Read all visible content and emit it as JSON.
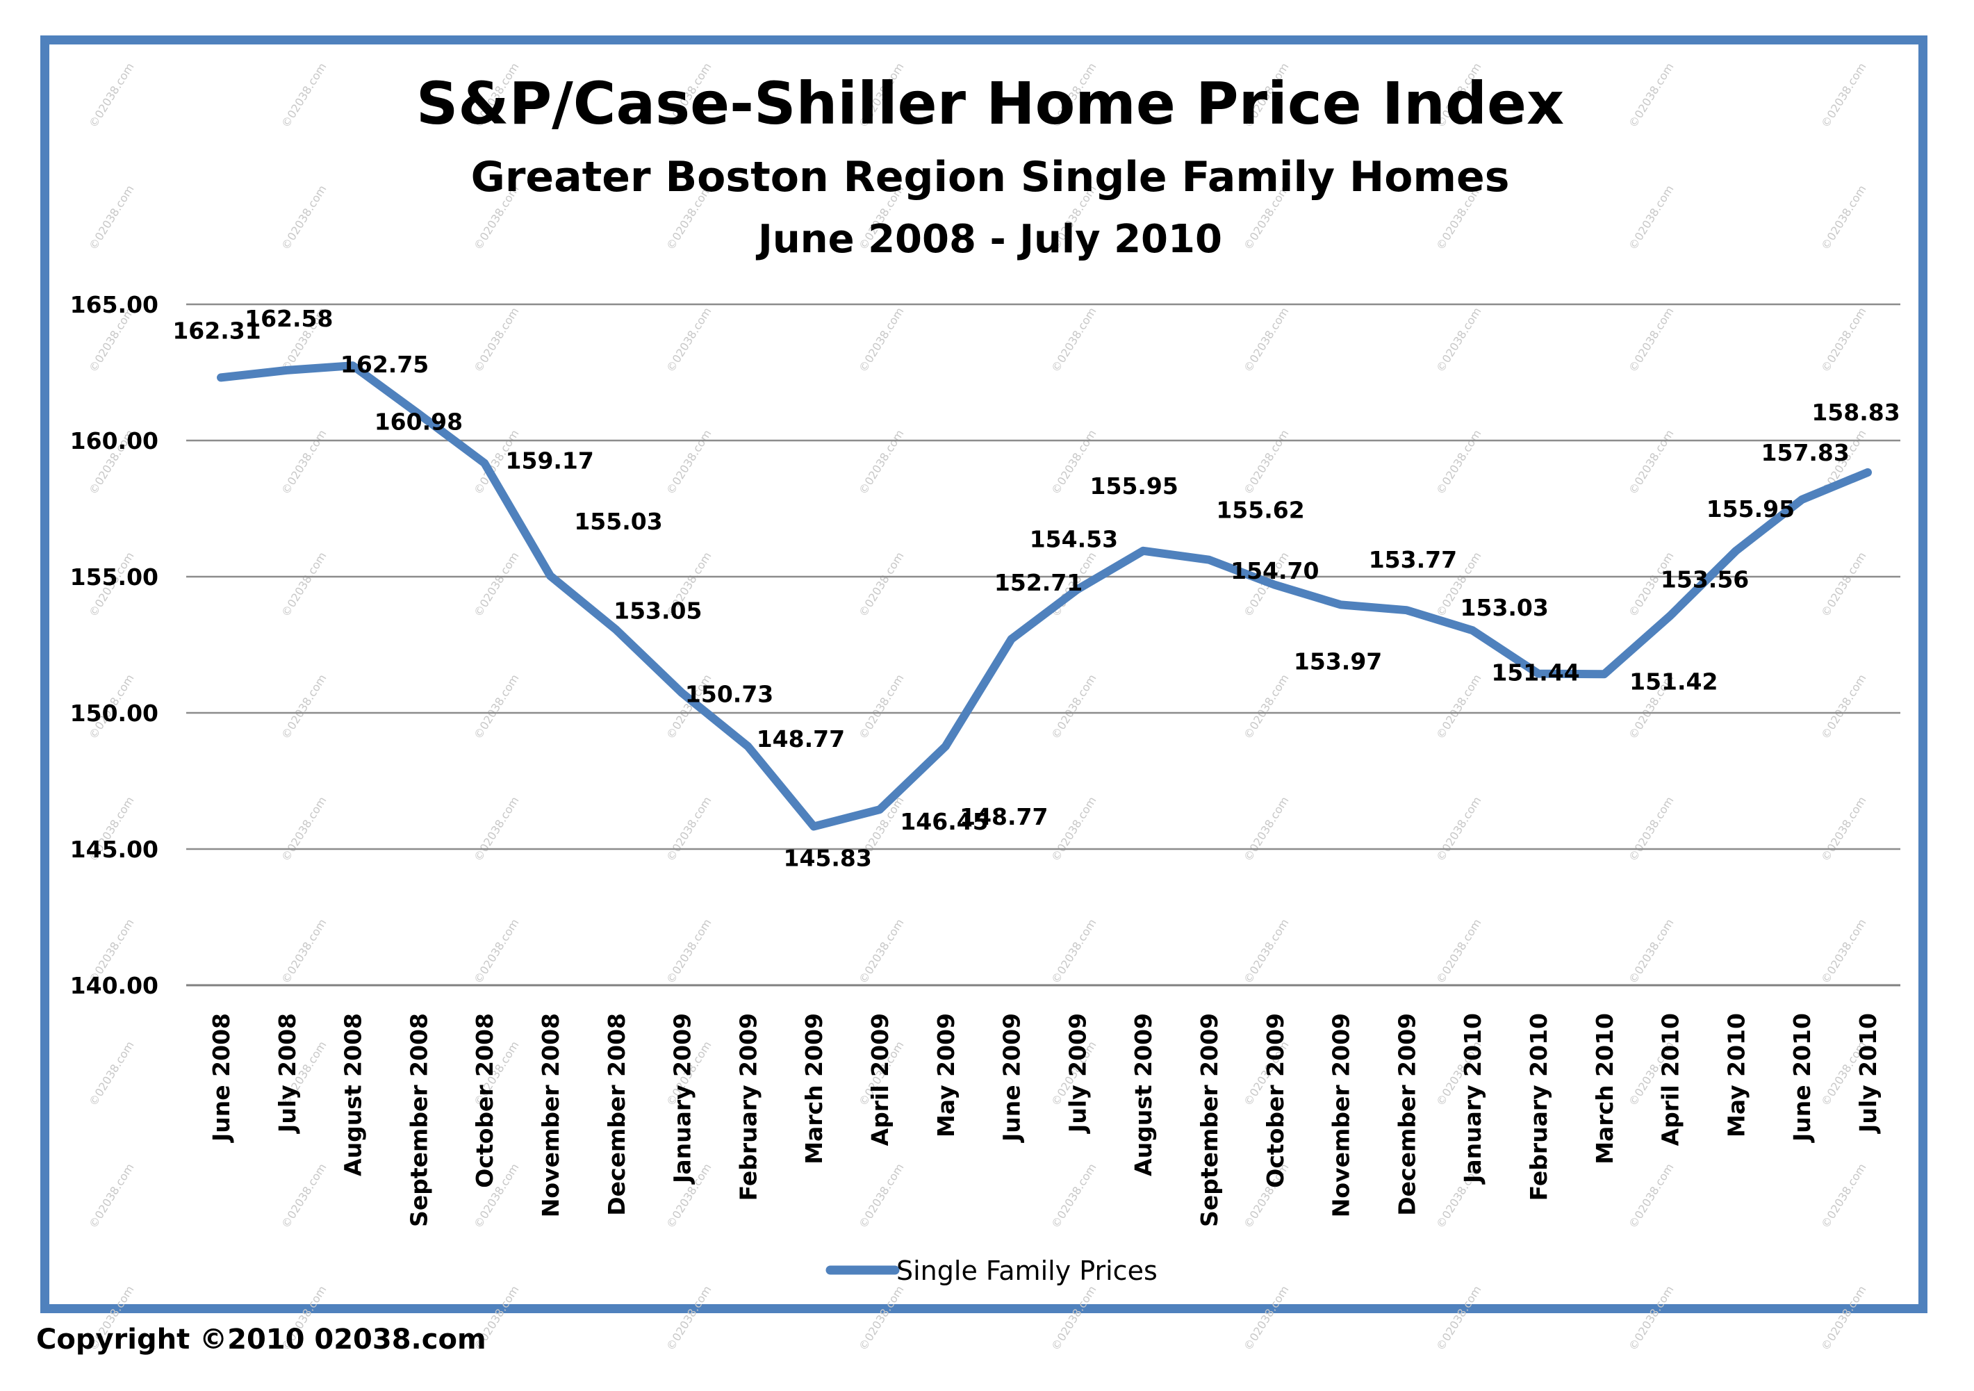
{
  "chart_data": {
    "type": "line",
    "title": "S&P/Case-Shiller Home Price Index",
    "subtitle": "Greater Boston Region Single Family Homes",
    "date_range": "June 2008 - July 2010",
    "categories": [
      "June 2008",
      "July 2008",
      "August 2008",
      "September 2008",
      "October 2008",
      "November 2008",
      "December 2008",
      "January 2009",
      "February 2009",
      "March 2009",
      "April 2009",
      "May 2009",
      "June 2009",
      "July 2009",
      "August 2009",
      "September 2009",
      "October 2009",
      "November 2009",
      "December 2009",
      "January 2010",
      "February 2010",
      "March 2010",
      "April 2010",
      "May 2010",
      "June 2010",
      "July 2010"
    ],
    "series": [
      {
        "name": "Single Family Prices",
        "color": "#4f81bd",
        "values": [
          162.31,
          162.58,
          162.75,
          160.98,
          159.17,
          155.03,
          153.05,
          150.73,
          148.77,
          145.83,
          146.45,
          148.77,
          152.71,
          154.53,
          155.95,
          155.62,
          154.7,
          153.97,
          153.77,
          153.03,
          151.44,
          151.42,
          153.56,
          155.95,
          157.83,
          158.83
        ],
        "labels": [
          "162.31",
          "162.58",
          "162.75",
          "160.98",
          "159.17",
          "155.03",
          "153.05",
          "150.73",
          "148.77",
          "145.83",
          "146.45",
          "148.77",
          "152.71",
          "154.53",
          "155.95",
          "155.62",
          "154.70",
          "153.97",
          "153.77",
          "153.03",
          "151.44",
          "151.42",
          "153.56",
          "155.95",
          "157.83",
          "158.83"
        ]
      }
    ],
    "ylim": [
      140,
      165
    ],
    "yticks": [
      "140.00",
      "145.00",
      "150.00",
      "155.00",
      "160.00",
      "165.00"
    ],
    "grid": true,
    "legend": "bottom-center",
    "frame_color": "#4f81bd"
  },
  "watermark_text": "©02038.com",
  "copyright": "Copyright ©2010 02038.com"
}
